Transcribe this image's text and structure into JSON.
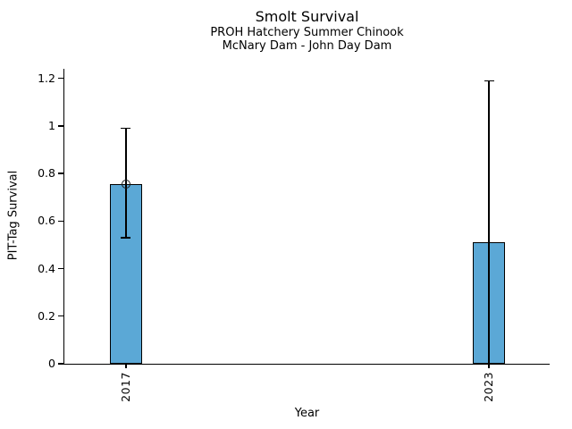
{
  "chart_data": {
    "type": "bar",
    "title": "Smolt Survival",
    "subtitle_line1": "PROH Hatchery Summer Chinook",
    "subtitle_line2": "McNary Dam - John Day Dam",
    "xlabel": "Year",
    "ylabel": "PIT-Tag Survival",
    "categories": [
      "2017",
      "2023"
    ],
    "values": [
      0.755,
      0.51
    ],
    "error_low": [
      0.53,
      0.0
    ],
    "error_high": [
      0.99,
      1.19
    ],
    "point_markers": [
      0.755,
      null
    ],
    "ylim": [
      0,
      1.24
    ],
    "yticks": [
      0,
      0.2,
      0.4,
      0.6,
      0.8,
      1,
      1.2
    ],
    "ytick_labels": [
      "0",
      "0.2",
      "0.4",
      "0.6",
      "0.8",
      "1",
      "1.2"
    ],
    "xtick_rotation_deg": 90,
    "grid": false,
    "legend": null,
    "bar_color": "#5BA8D6",
    "bar_edge_color": "#000000",
    "error_color": "#000000"
  }
}
